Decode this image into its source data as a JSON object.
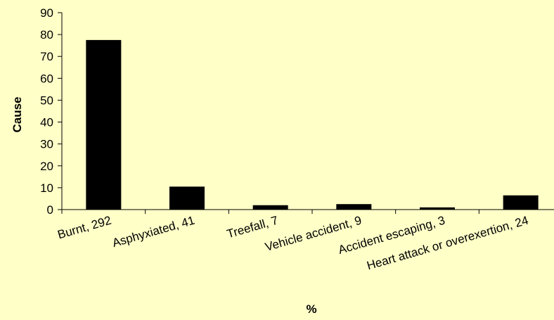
{
  "chart_data": {
    "type": "bar",
    "categories": [
      "Burnt, 292",
      "Asphyxiated, 41",
      "Treefall, 7",
      "Vehicle accident, 9",
      "Accident escaping, 3",
      "Heart attack or overexertion, 24"
    ],
    "values": [
      77.5,
      10.5,
      2,
      2.5,
      1,
      6.5
    ],
    "xlabel": "%",
    "ylabel": "Cause",
    "ylim": [
      0,
      90
    ],
    "yticks": [
      0,
      10,
      20,
      30,
      40,
      50,
      60,
      70,
      80,
      90
    ],
    "grid": false,
    "legend": "none",
    "colors": {
      "background": "#FFFFC8",
      "bar": "#000000",
      "axis": "#000000"
    }
  }
}
